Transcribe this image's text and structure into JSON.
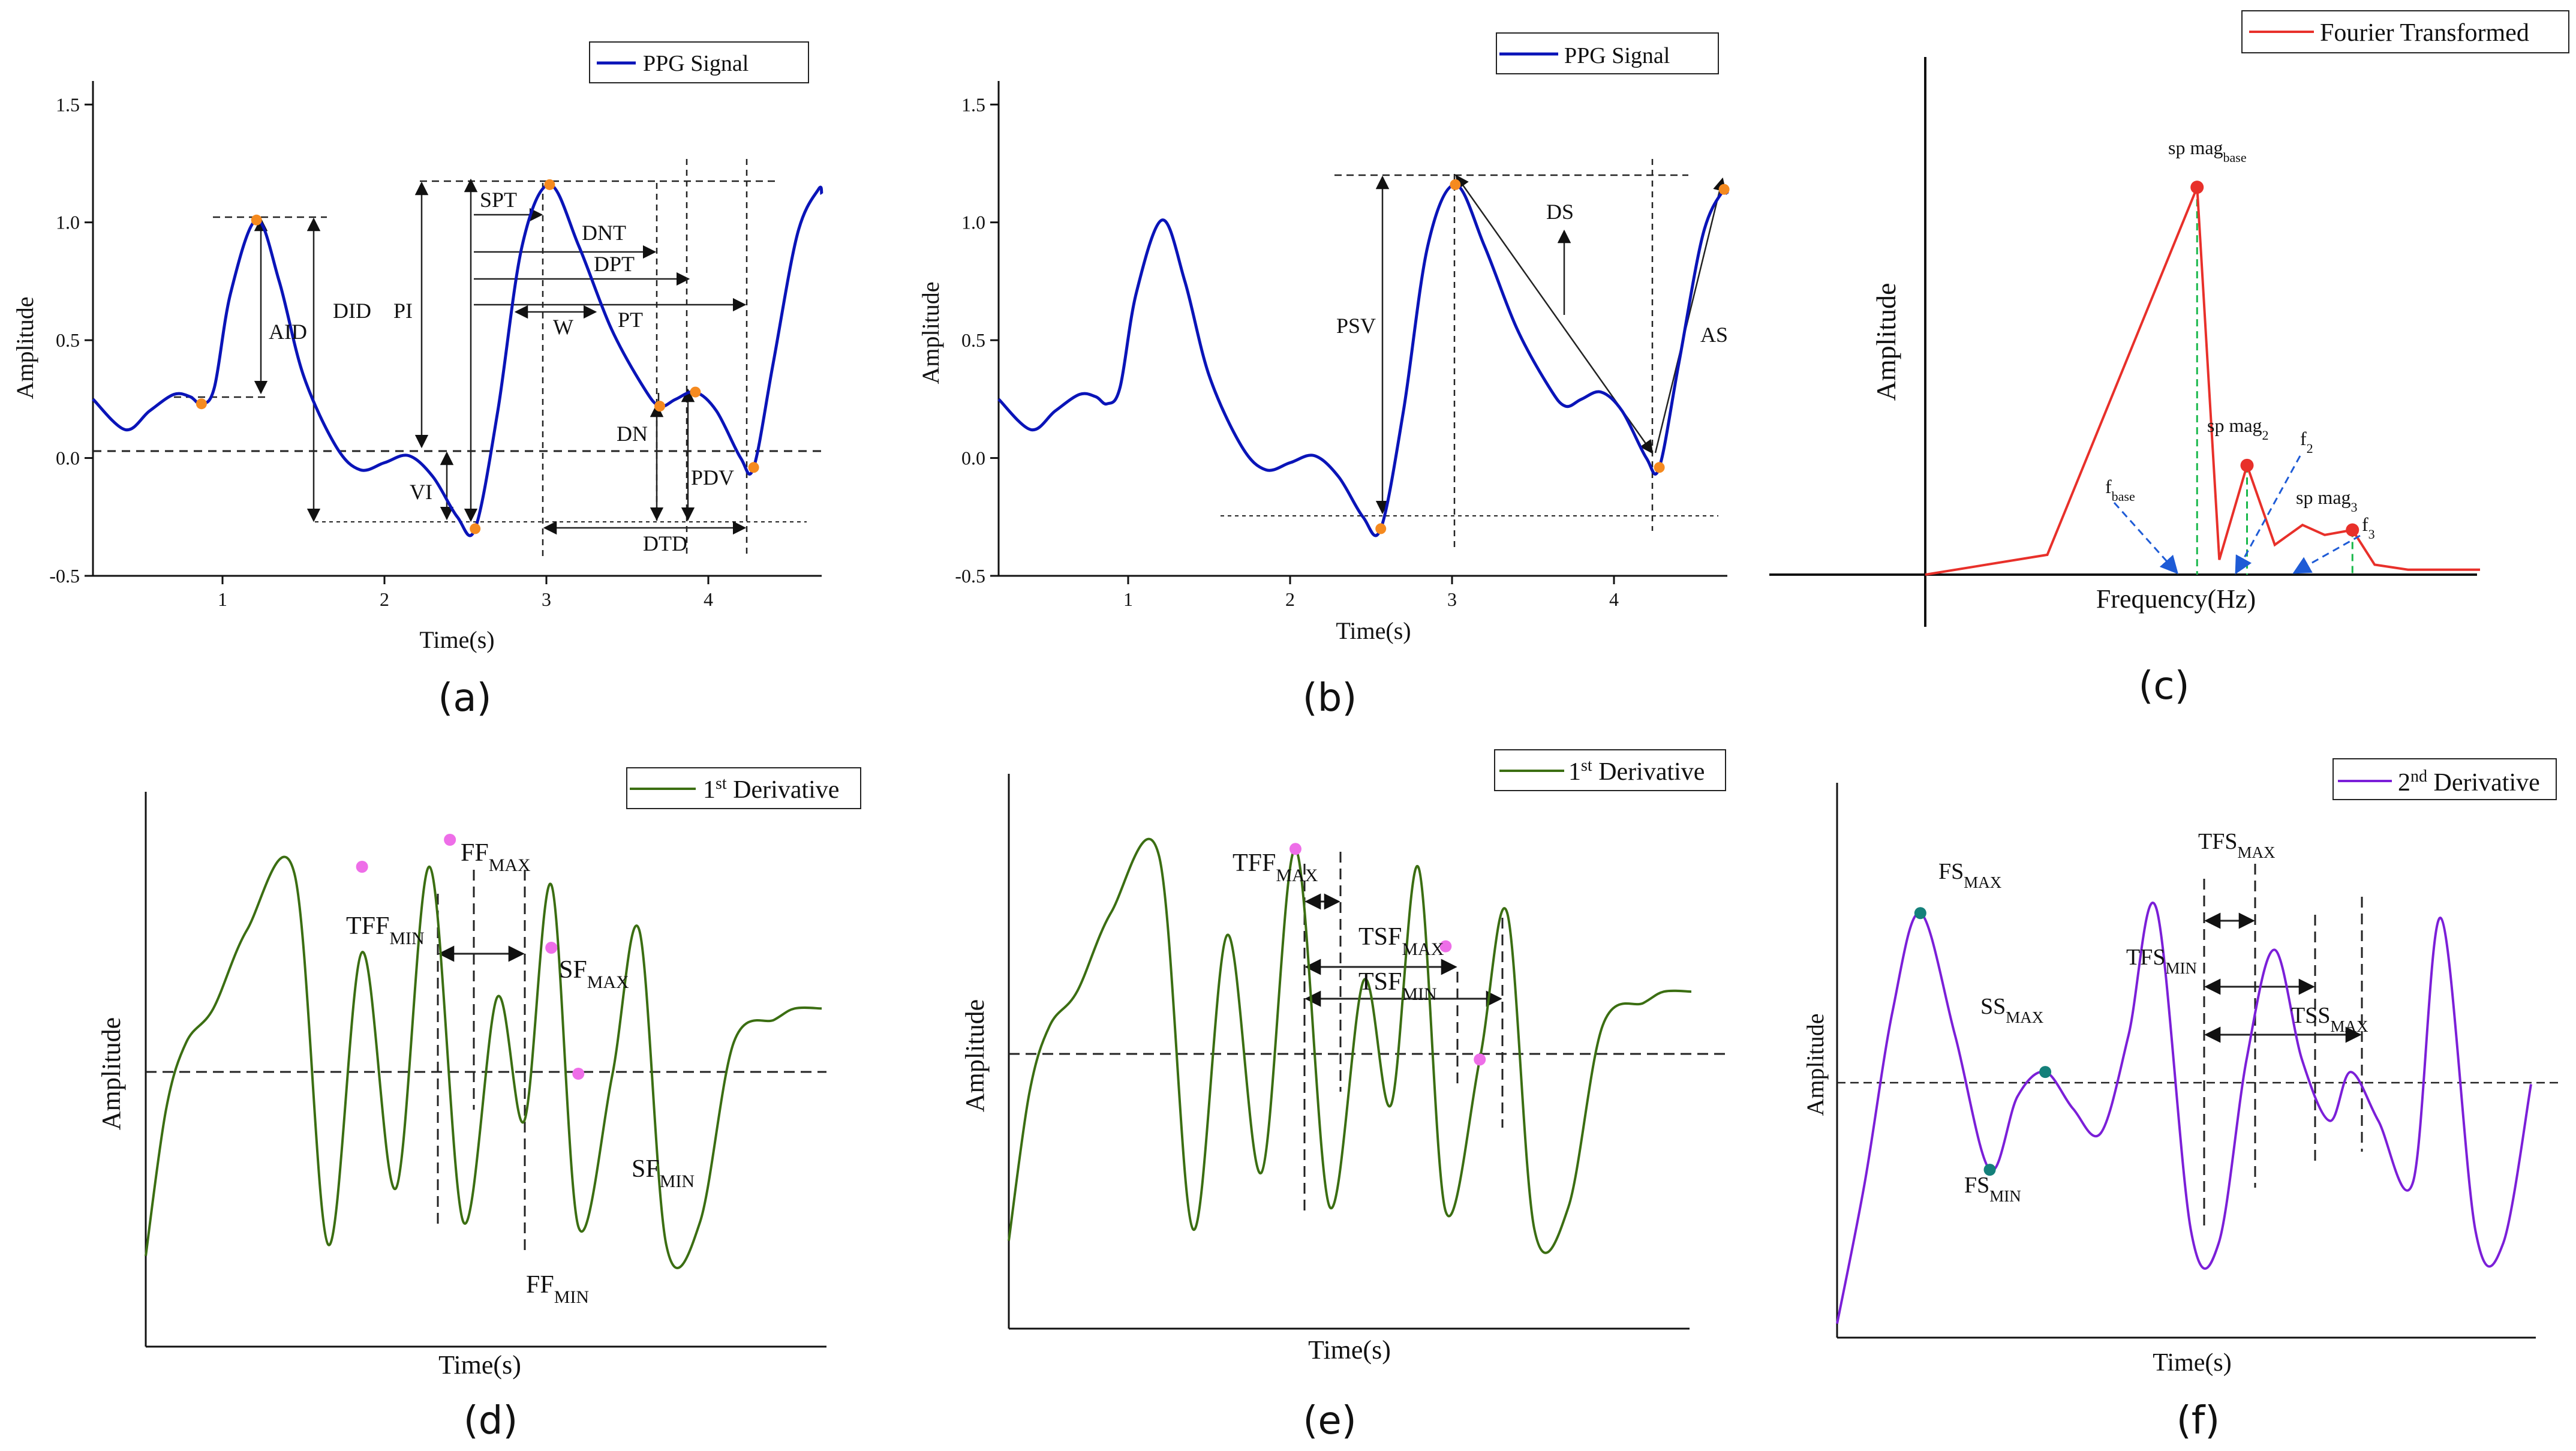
{
  "figure": {
    "panels": [
      {
        "id": "a",
        "panel_label": "(a)",
        "legend": "PPG Signal",
        "xlabel": "Time(s)",
        "ylabel": "Amplitude",
        "x_ticks": [
          "1",
          "2",
          "3",
          "4"
        ],
        "y_ticks": [
          "-0.5",
          "0.0",
          "0.5",
          "1.0",
          "1.5"
        ],
        "annotations": [
          "AID",
          "DID",
          "PI",
          "VI",
          "SPT",
          "DNT",
          "DPT",
          "W",
          "PT",
          "DN",
          "PDV",
          "DTD"
        ],
        "fiducial_points": [
          {
            "t": 0.87,
            "amp": 0.23
          },
          {
            "t": 1.21,
            "amp": 1.01
          },
          {
            "t": 2.56,
            "amp": -0.3
          },
          {
            "t": 3.02,
            "amp": 1.16
          },
          {
            "t": 3.7,
            "amp": 0.22
          },
          {
            "t": 3.92,
            "amp": 0.28
          },
          {
            "t": 4.28,
            "amp": -0.04
          }
        ]
      },
      {
        "id": "b",
        "panel_label": "(b)",
        "legend": "PPG Signal",
        "xlabel": "Time(s)",
        "ylabel": "Amplitude",
        "x_ticks": [
          "1",
          "2",
          "3",
          "4"
        ],
        "y_ticks": [
          "-0.5",
          "0.0",
          "0.5",
          "1.0",
          "1.5"
        ],
        "annotations": [
          "PSV",
          "DS",
          "AS"
        ],
        "fiducial_points": [
          {
            "t": 2.56,
            "amp": -0.3
          },
          {
            "t": 3.02,
            "amp": 1.16
          },
          {
            "t": 4.28,
            "amp": -0.04
          },
          {
            "t": 4.68,
            "amp": 1.14
          }
        ]
      },
      {
        "id": "c",
        "panel_label": "(c)",
        "legend": "Fourier Transformed",
        "xlabel": "Frequency(Hz)",
        "ylabel": "Amplitude",
        "peaks": [
          {
            "base": "sp mag",
            "sub": "base"
          },
          {
            "base": "sp mag",
            "sub": "2"
          },
          {
            "base": "sp mag",
            "sub": "3"
          }
        ],
        "freq_markers": [
          {
            "base": "f",
            "sub": "base"
          },
          {
            "base": "f",
            "sub": "2"
          },
          {
            "base": "f",
            "sub": "3"
          }
        ]
      },
      {
        "id": "d",
        "panel_label": "(d)",
        "legend": {
          "pre": "1",
          "sup": "st",
          "post": " Derivative"
        },
        "xlabel": "Time(s)",
        "ylabel": "Amplitude",
        "labels": [
          {
            "base": "FF",
            "sub": "MAX"
          },
          {
            "base": "TFF",
            "sub": "MIN"
          },
          {
            "base": "SF",
            "sub": "MAX"
          },
          {
            "base": "SF",
            "sub": "MIN"
          },
          {
            "base": "FF",
            "sub": "MIN"
          }
        ]
      },
      {
        "id": "e",
        "panel_label": "(e)",
        "legend": {
          "pre": "1",
          "sup": "st",
          "post": " Derivative"
        },
        "xlabel": "Time(s)",
        "ylabel": "Amplitude",
        "labels": [
          {
            "base": "TFF",
            "sub": "MAX"
          },
          {
            "base": "TSF",
            "sub": "MAX"
          },
          {
            "base": "TSF",
            "sub": "MIN"
          }
        ]
      },
      {
        "id": "f",
        "panel_label": "(f)",
        "legend": {
          "pre": "2",
          "sup": "nd",
          "post": " Derivative"
        },
        "xlabel": "Time(s)",
        "ylabel": "Amplitude",
        "labels": [
          {
            "base": "FS",
            "sub": "MAX"
          },
          {
            "base": "TFS",
            "sub": "MAX"
          },
          {
            "base": "TFS",
            "sub": "MIN"
          },
          {
            "base": "SS",
            "sub": "MAX"
          },
          {
            "base": "TSS",
            "sub": "MAX"
          },
          {
            "base": "FS",
            "sub": "MIN"
          }
        ]
      }
    ]
  },
  "chart_data": [
    {
      "type": "line",
      "panel": "a",
      "series": [
        {
          "name": "PPG Signal",
          "color": "#0a14b8"
        }
      ],
      "xlabel": "Time(s)",
      "ylabel": "Amplitude",
      "xlim": [
        0.2,
        4.7
      ],
      "ylim": [
        -0.5,
        1.6
      ],
      "x": [
        0.2,
        0.4,
        0.55,
        0.7,
        0.8,
        0.87,
        0.95,
        1.05,
        1.21,
        1.35,
        1.5,
        1.7,
        1.85,
        2.0,
        2.15,
        2.3,
        2.45,
        2.56,
        2.7,
        2.85,
        3.02,
        3.2,
        3.4,
        3.6,
        3.7,
        3.8,
        3.92,
        4.05,
        4.2,
        4.28,
        4.4,
        4.55,
        4.68,
        4.7
      ],
      "values": [
        0.25,
        0.12,
        0.2,
        0.27,
        0.26,
        0.23,
        0.3,
        0.7,
        1.01,
        0.75,
        0.35,
        0.05,
        -0.05,
        -0.02,
        0.01,
        -0.08,
        -0.25,
        -0.3,
        0.2,
        0.9,
        1.16,
        0.9,
        0.55,
        0.3,
        0.22,
        0.25,
        0.28,
        0.2,
        0.0,
        -0.04,
        0.4,
        0.95,
        1.14,
        1.12
      ]
    },
    {
      "type": "line",
      "panel": "b",
      "series": [
        {
          "name": "PPG Signal",
          "color": "#0a14b8"
        }
      ],
      "xlabel": "Time(s)",
      "ylabel": "Amplitude",
      "xlim": [
        0.2,
        4.7
      ],
      "ylim": [
        -0.5,
        1.6
      ],
      "x": [
        0.2,
        0.4,
        0.55,
        0.7,
        0.8,
        0.87,
        0.95,
        1.05,
        1.21,
        1.35,
        1.5,
        1.7,
        1.85,
        2.0,
        2.15,
        2.3,
        2.45,
        2.56,
        2.7,
        2.85,
        3.02,
        3.2,
        3.4,
        3.6,
        3.7,
        3.8,
        3.92,
        4.05,
        4.2,
        4.28,
        4.4,
        4.55,
        4.68,
        4.7
      ],
      "values": [
        0.25,
        0.12,
        0.2,
        0.27,
        0.26,
        0.23,
        0.3,
        0.7,
        1.01,
        0.75,
        0.35,
        0.05,
        -0.05,
        -0.02,
        0.01,
        -0.08,
        -0.25,
        -0.3,
        0.2,
        0.9,
        1.16,
        0.9,
        0.55,
        0.3,
        0.22,
        0.25,
        0.28,
        0.2,
        0.0,
        -0.04,
        0.4,
        0.95,
        1.14,
        1.12
      ]
    },
    {
      "type": "line",
      "panel": "c",
      "series": [
        {
          "name": "Fourier Transformed",
          "color": "#e8302a"
        }
      ],
      "xlabel": "Frequency(Hz)",
      "ylabel": "Amplitude",
      "xlim": [
        0,
        100
      ],
      "ylim": [
        0,
        100
      ],
      "x": [
        0,
        22,
        49,
        53,
        58,
        63,
        68,
        72,
        77,
        81,
        87,
        100
      ],
      "values": [
        0,
        4,
        78,
        3,
        22,
        6,
        10,
        8,
        9,
        2,
        1,
        1
      ]
    },
    {
      "type": "line",
      "panel": "d",
      "series": [
        {
          "name": "1st Derivative",
          "color": "#3b6e12"
        }
      ],
      "xlabel": "Time(s)",
      "ylabel": "Amplitude",
      "xlim": [
        0,
        100
      ],
      "ylim": [
        -100,
        100
      ],
      "x": [
        0,
        3,
        6,
        10,
        15,
        22,
        27,
        32,
        37,
        42,
        47,
        52,
        56,
        60,
        64,
        69,
        73,
        77,
        82,
        87,
        93,
        96,
        100
      ],
      "values": [
        -85,
        -20,
        10,
        25,
        60,
        85,
        -80,
        50,
        -55,
        88,
        -70,
        30,
        -25,
        80,
        -72,
        -5,
        60,
        -80,
        -70,
        10,
        20,
        25,
        25
      ]
    },
    {
      "type": "line",
      "panel": "e",
      "series": [
        {
          "name": "1st Derivative",
          "color": "#3b6e12"
        }
      ],
      "xlabel": "Time(s)",
      "ylabel": "Amplitude",
      "xlim": [
        0,
        100
      ],
      "ylim": [
        -100,
        100
      ],
      "x": [
        0,
        3,
        6,
        10,
        15,
        22,
        27,
        32,
        37,
        42,
        47,
        52,
        56,
        60,
        64,
        69,
        73,
        77,
        82,
        87,
        93,
        96,
        100
      ],
      "values": [
        -85,
        -20,
        10,
        25,
        60,
        85,
        -80,
        50,
        -55,
        88,
        -70,
        30,
        -25,
        80,
        -72,
        -5,
        60,
        -80,
        -70,
        10,
        20,
        25,
        25
      ]
    },
    {
      "type": "line",
      "panel": "f",
      "series": [
        {
          "name": "2nd Derivative",
          "color": "#7b1fd8"
        }
      ],
      "xlabel": "Time(s)",
      "ylabel": "Amplitude",
      "xlim": [
        0,
        100
      ],
      "ylim": [
        -100,
        100
      ],
      "x": [
        0,
        4,
        8,
        12,
        17,
        22,
        26,
        30,
        34,
        38,
        42,
        46,
        51,
        55,
        59,
        63,
        67,
        71,
        74,
        78,
        83,
        87,
        92,
        96,
        100
      ],
      "values": [
        -98,
        -40,
        30,
        70,
        20,
        -35,
        -5,
        5,
        -10,
        -20,
        20,
        72,
        -60,
        -65,
        10,
        55,
        10,
        -15,
        5,
        -15,
        -40,
        68,
        -60,
        -65,
        0
      ]
    }
  ]
}
